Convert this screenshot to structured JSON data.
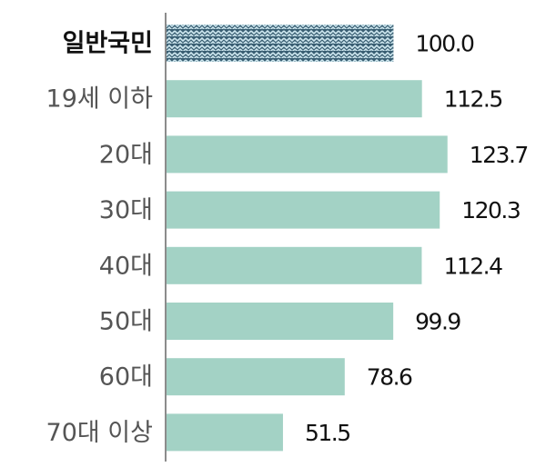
{
  "chart_data": {
    "type": "bar",
    "orientation": "horizontal",
    "categories": [
      "일반국민",
      "19세 이하",
      "20대",
      "30대",
      "40대",
      "50대",
      "60대",
      "70대 이상"
    ],
    "values": [
      100.0,
      112.5,
      123.7,
      120.3,
      112.4,
      99.9,
      78.6,
      51.5
    ],
    "value_labels": [
      "100.0",
      "112.5",
      "123.7",
      "120.3",
      "112.4",
      "99.9",
      "78.6",
      "51.5"
    ],
    "highlight_index": 0,
    "title": "",
    "xlabel": "",
    "ylabel": "",
    "xlim": [
      0,
      127
    ],
    "grid": false,
    "legend": "none",
    "colors": {
      "bar": "#a3d2c5",
      "highlight_dark": "#3a5f73",
      "highlight_light": "#cfe8f0",
      "axis": "#8c8c8c",
      "category_text": "#555555",
      "highlight_text": "#111111",
      "value_text": "#111111"
    }
  }
}
